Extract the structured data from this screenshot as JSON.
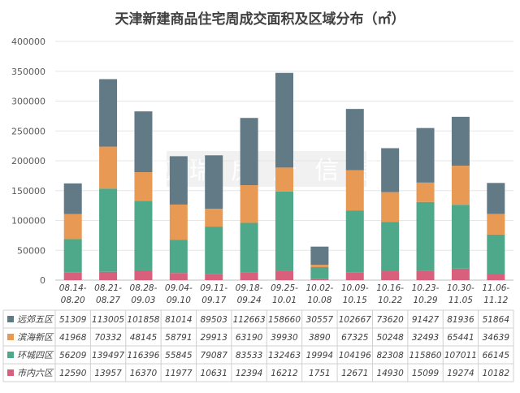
{
  "chart_data": {
    "type": "bar",
    "stacked": true,
    "title": "天津新建商品住宅周成交面积及区域分布（㎡）",
    "categories": [
      "08.14-08.20",
      "08.21-08.27",
      "08.28-09.03",
      "09.04-09.10",
      "09.11-09.17",
      "09.18-09.24",
      "09.25-10.01",
      "10.02-10.08",
      "10.09-10.15",
      "10.16-10.22",
      "10.23-10.29",
      "10.30-11.05",
      "11.06-11.12"
    ],
    "category_lines": [
      [
        "08.14-",
        "08.20"
      ],
      [
        "08.21-",
        "08.27"
      ],
      [
        "08.28-",
        "09.03"
      ],
      [
        "09.04-",
        "09.10"
      ],
      [
        "09.11-",
        "09.17"
      ],
      [
        "09.18-",
        "09.24"
      ],
      [
        "09.25-",
        "10.01"
      ],
      [
        "10.02-",
        "10.08"
      ],
      [
        "10.09-",
        "10.15"
      ],
      [
        "10.16-",
        "10.22"
      ],
      [
        "10.23-",
        "10.29"
      ],
      [
        "10.30-",
        "11.05"
      ],
      [
        "11.06-",
        "11.12"
      ]
    ],
    "series": [
      {
        "name": "市内六区",
        "color": "#d9607c",
        "values": [
          12590,
          13957,
          16370,
          11977,
          10631,
          12394,
          16212,
          1751,
          12671,
          14930,
          15099,
          19274,
          10182
        ]
      },
      {
        "name": "环城四区",
        "color": "#4ea98a",
        "values": [
          56209,
          139497,
          116396,
          55845,
          79087,
          83533,
          132463,
          19994,
          104196,
          82308,
          115860,
          107011,
          66145
        ]
      },
      {
        "name": "滨海新区",
        "color": "#e89a55",
        "values": [
          41968,
          70332,
          48145,
          58791,
          29913,
          63190,
          39930,
          3890,
          67325,
          50248,
          32493,
          65441,
          34639
        ]
      },
      {
        "name": "远郊五区",
        "color": "#627a86",
        "values": [
          51309,
          113005,
          101858,
          81014,
          89503,
          112663,
          158660,
          30557,
          102667,
          73620,
          91427,
          81936,
          51864
        ]
      }
    ],
    "table_order": [
      3,
      2,
      1,
      0
    ],
    "yticks": [
      "0",
      "50000",
      "100000",
      "150000",
      "200000",
      "250000",
      "300000",
      "350000",
      "400000"
    ],
    "ylim": [
      0,
      400000
    ],
    "grid": true,
    "xlabel": "",
    "ylabel": ""
  }
}
